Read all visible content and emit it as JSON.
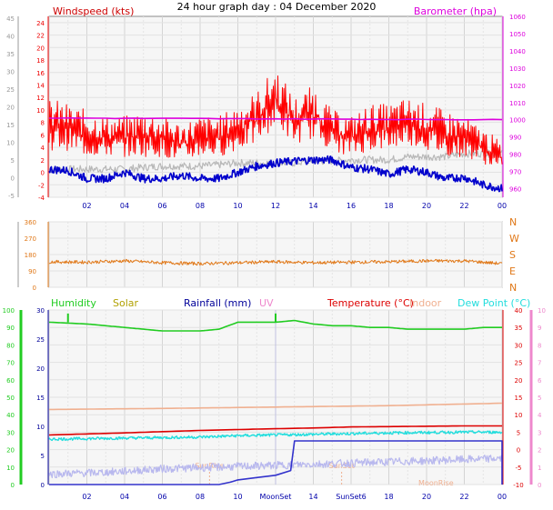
{
  "title": "24 hour graph day : 04 December 2020",
  "colors": {
    "wind": "#ee0000",
    "gust": "#ff0000",
    "avgwind": "#0000cc",
    "baro": "#dd00dd",
    "grey": "#b8b8b8",
    "dir": "#e07818",
    "humidity": "#22cc22",
    "solar": "#b0a000",
    "rain": "#000099",
    "uv": "#ee88cc",
    "temp": "#dd0000",
    "indoor": "#f0b090",
    "dew": "#22dddd",
    "axisblue": "#0000aa"
  },
  "chart_data": [
    {
      "type": "line",
      "name": "wind-panel",
      "xlabel": "",
      "x_tick_labels": [
        "02",
        "04",
        "06",
        "08",
        "10",
        "12",
        "14",
        "16",
        "18",
        "20",
        "22",
        "00"
      ],
      "left_axis_label": "Windspeed (kts)",
      "left_axis_ticks": [
        "-4",
        "-2",
        "0",
        "2",
        "4",
        "6",
        "8",
        "10",
        "12",
        "14",
        "16",
        "18",
        "20",
        "22",
        "24"
      ],
      "left_outer_ticks": [
        "-5",
        "0",
        "5",
        "10",
        "15",
        "20",
        "25",
        "30",
        "35",
        "40",
        "45"
      ],
      "right_axis_label": "Barometer (hpa)",
      "right_axis_ticks": [
        "960",
        "970",
        "980",
        "990",
        "1000",
        "1010",
        "1020",
        "1030",
        "1040",
        "1050",
        "1060"
      ],
      "ylim": [
        -4,
        25
      ],
      "y2lim": [
        955,
        1060
      ],
      "grid": true,
      "series": [
        {
          "key": "gust",
          "x": [
            0,
            1,
            2,
            3,
            4,
            5,
            6,
            7,
            8,
            9,
            10,
            11,
            12,
            13,
            14,
            15,
            16,
            17,
            18,
            19,
            20,
            21,
            22,
            23,
            24
          ],
          "y": [
            12,
            11,
            10,
            9,
            9,
            10,
            9,
            8,
            9,
            9,
            11,
            13,
            17,
            12,
            14,
            10,
            9,
            11,
            11,
            12,
            11,
            10,
            9,
            7,
            5
          ]
        },
        {
          "key": "wind",
          "x": [
            0,
            1,
            2,
            3,
            4,
            5,
            6,
            7,
            8,
            9,
            10,
            11,
            12,
            13,
            14,
            15,
            16,
            17,
            18,
            19,
            20,
            21,
            22,
            23,
            24
          ],
          "y": [
            6,
            6,
            5,
            5,
            5,
            5,
            5,
            4,
            5,
            5,
            6,
            7,
            10,
            7,
            8,
            6,
            5,
            6,
            6,
            7,
            6,
            5,
            5,
            4,
            2
          ]
        },
        {
          "key": "avgwind",
          "x": [
            0,
            1,
            2,
            3,
            4,
            5,
            6,
            7,
            8,
            9,
            10,
            11,
            12,
            13,
            14,
            15,
            16,
            17,
            18,
            19,
            20,
            21,
            22,
            23,
            24
          ],
          "y": [
            0.5,
            0.3,
            -1,
            -1,
            0,
            -1,
            -1,
            -0.5,
            -1,
            -1,
            0,
            1,
            1.5,
            1.8,
            2,
            2,
            0.8,
            0.5,
            -0.3,
            0.5,
            0,
            -1,
            -0.8,
            -2,
            -2.6
          ]
        },
        {
          "key": "grey",
          "x": [
            0,
            1,
            2,
            3,
            4,
            5,
            6,
            7,
            8,
            9,
            10,
            11,
            12,
            13,
            14,
            15,
            16,
            17,
            18,
            19,
            20,
            21,
            22,
            23,
            24
          ],
          "y": [
            0.5,
            0.5,
            0.5,
            0.5,
            0.5,
            0.8,
            1,
            1,
            1,
            1.2,
            1.5,
            1.5,
            1.5,
            1.5,
            1.8,
            1.8,
            2,
            2,
            2,
            2.5,
            2.5,
            2.5,
            3,
            3,
            3
          ]
        },
        {
          "key": "baro",
          "x": [
            0,
            24
          ],
          "y": [
            1001,
            1000
          ]
        }
      ]
    },
    {
      "type": "scatter",
      "name": "direction-panel",
      "left_axis_ticks": [
        "0",
        "90",
        "180",
        "270",
        "360"
      ],
      "right_axis_ticks": [
        "N",
        "E",
        "S",
        "W",
        "N"
      ],
      "ylim": [
        0,
        360
      ],
      "series": [
        {
          "key": "dir",
          "x": [
            0,
            2,
            4,
            6,
            8,
            10,
            12,
            14,
            16,
            18,
            20,
            22,
            24
          ],
          "y": [
            140,
            138,
            145,
            135,
            130,
            135,
            140,
            135,
            138,
            140,
            145,
            145,
            130
          ]
        }
      ]
    },
    {
      "type": "line",
      "name": "multi-panel",
      "legend": [
        "Humidity",
        "Solar",
        "Rainfall (mm)",
        "UV",
        "Temperature (°C)",
        "Indoor",
        "Dew Point (°C)"
      ],
      "humidity_axis_ticks": [
        "0",
        "10",
        "20",
        "30",
        "40",
        "50",
        "60",
        "70",
        "80",
        "90",
        "100"
      ],
      "rain_axis_ticks": [
        "0",
        "5",
        "10",
        "15",
        "20",
        "25",
        "30"
      ],
      "temp_axis_ticks": [
        "-10",
        "-5",
        "0",
        "5",
        "10",
        "15",
        "20",
        "25",
        "30",
        "35",
        "40"
      ],
      "uv_axis_ticks": [
        "0",
        "1",
        "2",
        "3",
        "4",
        "5",
        "6",
        "7",
        "8",
        "9",
        "10"
      ],
      "x_tick_labels": [
        "02",
        "04",
        "06",
        "08",
        "10",
        "MoonSet",
        "14",
        "SunSet6",
        "18",
        "20",
        "22",
        "00"
      ],
      "annotations": [
        "SunRise",
        "SunSet",
        "MoonRise"
      ],
      "grid": true,
      "series": [
        {
          "key": "humidity",
          "x": [
            0,
            2,
            4,
            5,
            6,
            7,
            8,
            9,
            10,
            11,
            12,
            13,
            14,
            15,
            16,
            17,
            18,
            19,
            20,
            21,
            22,
            23,
            24
          ],
          "y": [
            93,
            92,
            90,
            89,
            88,
            88,
            88,
            89,
            93,
            93,
            93,
            94,
            92,
            91,
            91,
            90,
            90,
            89,
            89,
            89,
            89,
            90,
            90
          ]
        },
        {
          "key": "indoor",
          "x": [
            0,
            6,
            12,
            18,
            24
          ],
          "y": [
            11.5,
            11.8,
            12.2,
            12.6,
            13.3
          ]
        },
        {
          "key": "temp",
          "x": [
            0,
            4,
            8,
            12,
            14,
            16,
            18,
            20,
            22,
            24
          ],
          "y": [
            4.2,
            4.8,
            5.5,
            6.0,
            6.2,
            6.5,
            6.6,
            6.7,
            6.8,
            6.8
          ]
        },
        {
          "key": "dew",
          "x": [
            0,
            4,
            8,
            10,
            12,
            14,
            16,
            18,
            20,
            22,
            24
          ],
          "y": [
            3,
            3.3,
            3.6,
            4,
            4.2,
            4.4,
            4.6,
            4.8,
            4.9,
            5.0,
            5.0
          ]
        },
        {
          "key": "uv",
          "x": [
            0,
            3,
            6,
            9,
            12,
            15,
            18,
            21,
            24
          ],
          "y": [
            0.6,
            0.7,
            0.9,
            1.0,
            1.1,
            1.2,
            1.3,
            1.4,
            1.5
          ]
        },
        {
          "key": "rain",
          "x": [
            0,
            9,
            9.6,
            10,
            11,
            12,
            12.8,
            13,
            24,
            24
          ],
          "y": [
            0,
            0,
            0.4,
            0.8,
            1.2,
            1.6,
            2.4,
            7.5,
            7.5,
            0
          ]
        }
      ]
    }
  ]
}
